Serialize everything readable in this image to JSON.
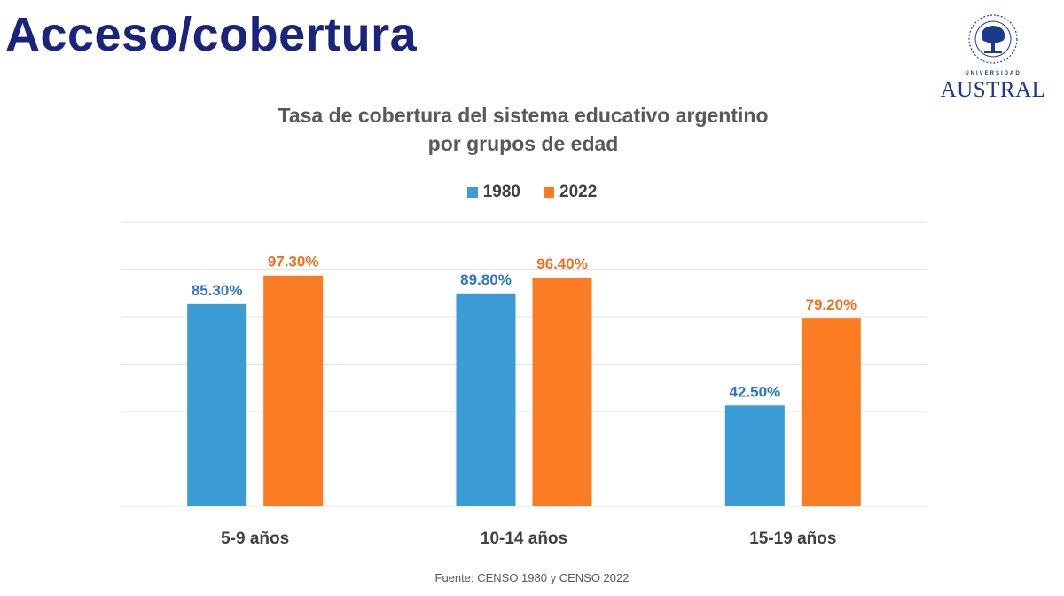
{
  "header": {
    "title": "Acceso/cobertura"
  },
  "logo": {
    "university_label": "UNIVERSIDAD",
    "name": "AUSTRAL"
  },
  "chart_data": {
    "type": "bar",
    "title_line1": "Tasa de cobertura del sistema educativo argentino",
    "title_line2": "por grupos de edad",
    "categories": [
      "5-9 años",
      "10-14 años",
      "15-19 años"
    ],
    "series": [
      {
        "name": "1980",
        "color": "#3a9bd5",
        "label_color": "#2e75c8",
        "values": [
          85.3,
          89.8,
          42.5
        ],
        "labels": [
          "85.30%",
          "89.80%",
          "42.50%"
        ]
      },
      {
        "name": "2022",
        "color": "#fb7c23",
        "label_color": "#f37021",
        "values": [
          97.3,
          96.4,
          79.2
        ],
        "labels": [
          "97.30%",
          "96.40%",
          "79.20%"
        ]
      }
    ],
    "ylim": [
      0,
      120
    ],
    "grid": true,
    "legend_position": "top-center"
  },
  "footnote": "Fuente: CENSO 1980 y CENSO 2022"
}
